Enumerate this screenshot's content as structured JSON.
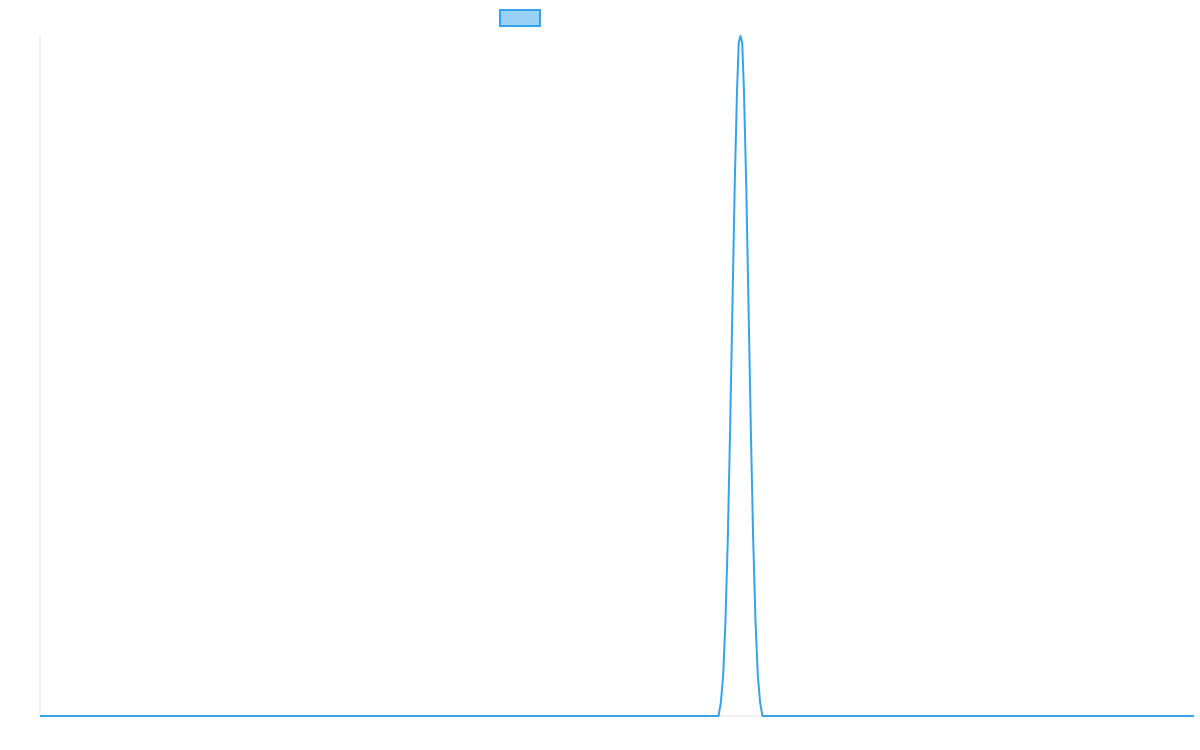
{
  "colors": {
    "line": "#36a2eb",
    "legend_fill": "#9ad0f5",
    "axis": "#e5e5e5"
  },
  "legend": {
    "position": "top",
    "label": ""
  },
  "chart_data": {
    "type": "line",
    "title": "",
    "xlabel": "",
    "ylabel": "",
    "grid": false,
    "legend_position": "top",
    "xlim": [
      0,
      100
    ],
    "ylim": [
      0,
      1
    ],
    "series": [
      {
        "points": [
          [
            0,
            0
          ],
          [
            58.8,
            0
          ],
          [
            59.0,
            0.02
          ],
          [
            59.2,
            0.06
          ],
          [
            59.4,
            0.14
          ],
          [
            59.6,
            0.26
          ],
          [
            59.8,
            0.42
          ],
          [
            60.0,
            0.6
          ],
          [
            60.2,
            0.78
          ],
          [
            60.4,
            0.92
          ],
          [
            60.55,
            0.99
          ],
          [
            60.7,
            1.0
          ],
          [
            60.85,
            0.99
          ],
          [
            61.0,
            0.92
          ],
          [
            61.2,
            0.78
          ],
          [
            61.4,
            0.6
          ],
          [
            61.6,
            0.42
          ],
          [
            61.8,
            0.26
          ],
          [
            62.0,
            0.14
          ],
          [
            62.2,
            0.06
          ],
          [
            62.4,
            0.02
          ],
          [
            62.6,
            0
          ],
          [
            100,
            0
          ]
        ]
      }
    ]
  }
}
